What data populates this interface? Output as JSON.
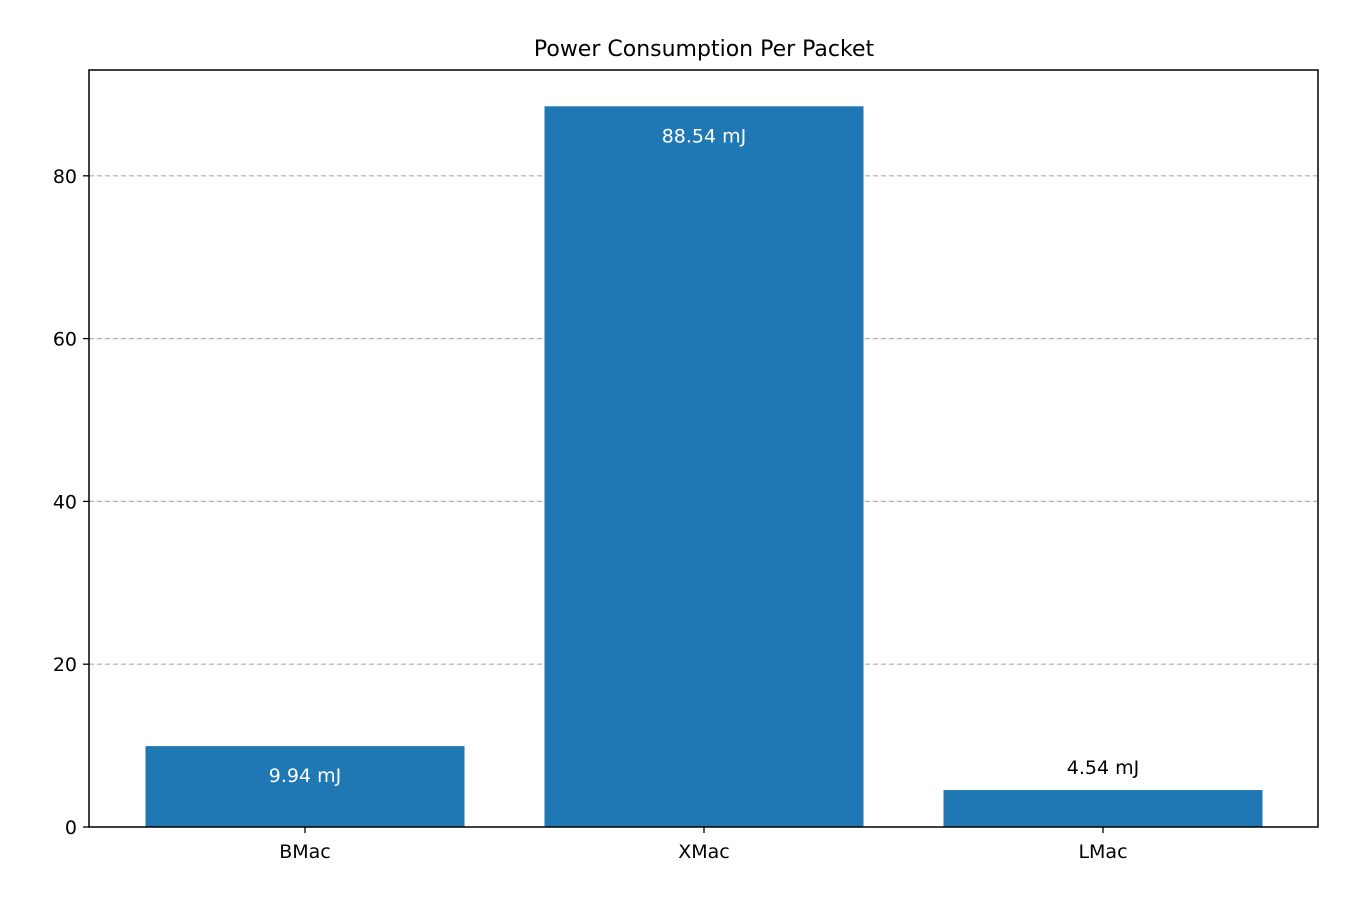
{
  "chart_data": {
    "type": "bar",
    "title": "Power Consumption Per Packet",
    "xlabel": "",
    "ylabel": "",
    "categories": [
      "BMac",
      "XMac",
      "LMac"
    ],
    "values": [
      9.94,
      88.54,
      4.54
    ],
    "data_labels": [
      "9.94 mJ",
      "88.54 mJ",
      "4.54 mJ"
    ],
    "ylim": [
      0,
      93
    ],
    "yticks": [
      0,
      20,
      40,
      60,
      80
    ],
    "ytick_labels": [
      "0",
      "20",
      "40",
      "60",
      "80"
    ],
    "grid": "y-dashed",
    "legend": "none",
    "colors": {
      "bar": "#1f77b4",
      "grid": "#b0b0b0",
      "axis": "#000000",
      "label_inside": "#ffffff",
      "label_outside": "#000000"
    }
  }
}
